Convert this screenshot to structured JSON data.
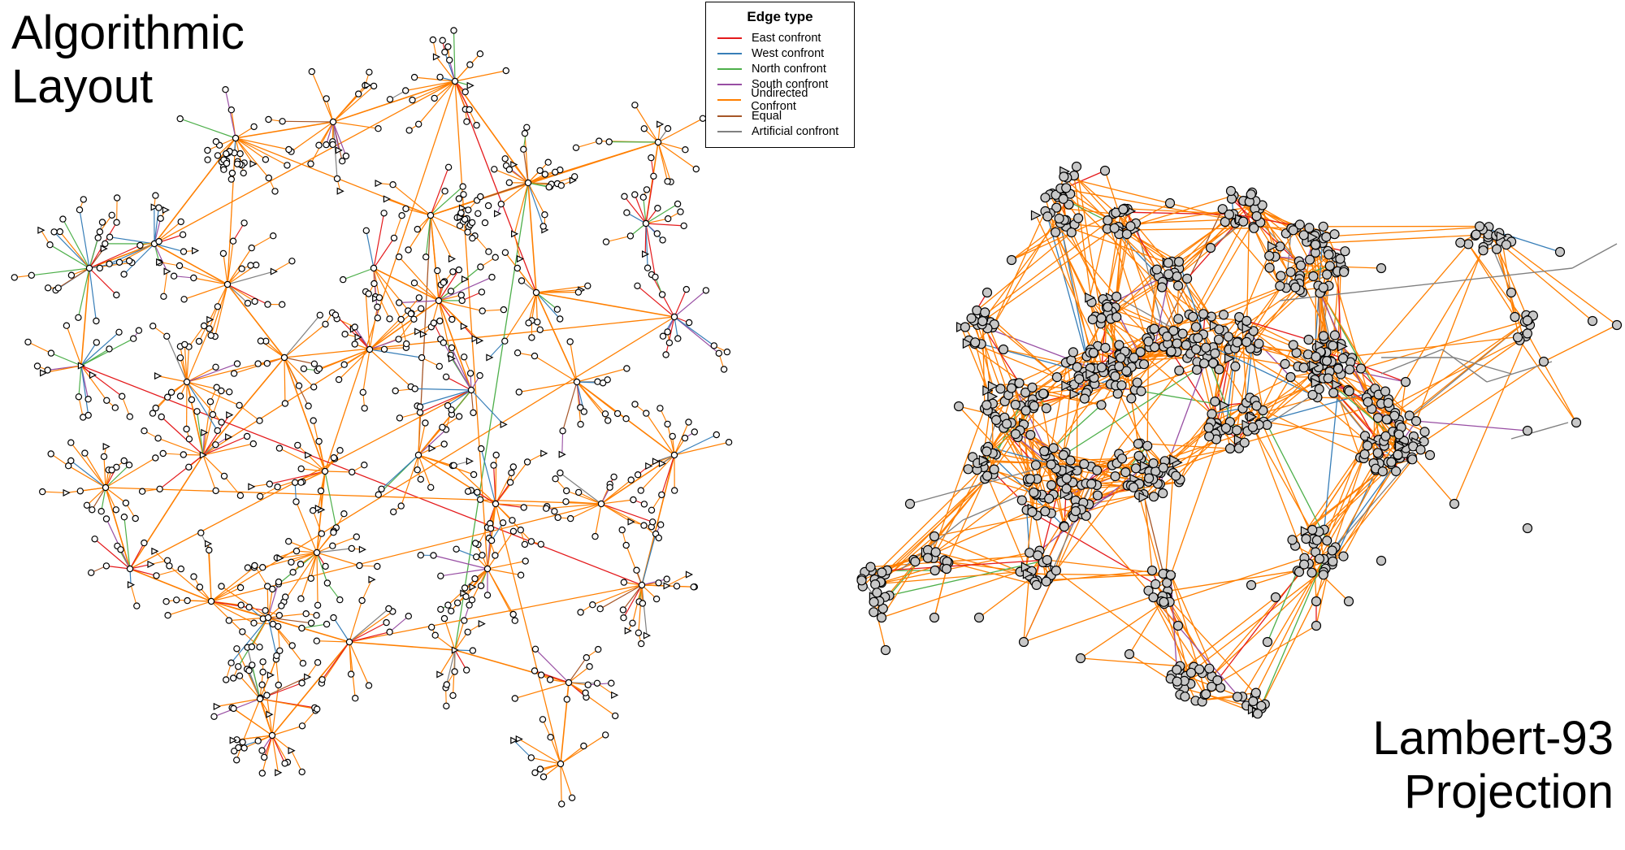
{
  "titles": {
    "left": [
      "Algorithmic",
      "Layout"
    ],
    "right": [
      "Lambert-93",
      "Projection"
    ]
  },
  "legend": {
    "title": "Edge type",
    "items": [
      {
        "label": "East confront",
        "color": "#e41a1c"
      },
      {
        "label": "West confront",
        "color": "#377eb8"
      },
      {
        "label": "North confront",
        "color": "#4daf4a"
      },
      {
        "label": "South confront",
        "color": "#984ea3"
      },
      {
        "label": "Undirected Confront",
        "color": "#ff7f00"
      },
      {
        "label": "Equal",
        "color": "#a65628"
      },
      {
        "label": "Artificial confront",
        "color": "#808080"
      }
    ]
  },
  "colors": {
    "node_fill_left": "#ffffff",
    "node_fill_right": "#c8c8c8",
    "node_stroke": "#000000"
  }
}
